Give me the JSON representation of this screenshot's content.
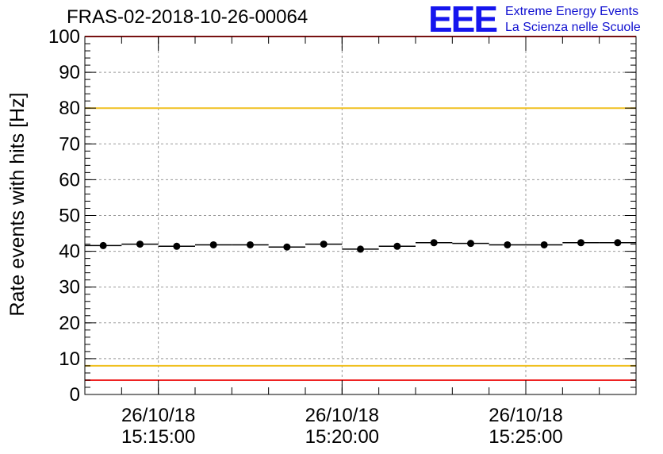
{
  "title": "FRAS-02-2018-10-26-00064",
  "logo": {
    "mark": "EEE",
    "line1": "Extreme Energy Events",
    "line2": "La Scienza nelle Scuole",
    "color": "#1515ee"
  },
  "chart_data": {
    "type": "scatter",
    "title": "FRAS-02-2018-10-26-00064",
    "xlabel": "",
    "ylabel": "Rate events with hits [Hz]",
    "ylim": [
      0,
      100
    ],
    "yticks": [
      0,
      10,
      20,
      30,
      40,
      50,
      60,
      70,
      80,
      90,
      100
    ],
    "xlim": [
      "26/10/18 15:13:00",
      "26/10/18 15:28:00"
    ],
    "xticks": [
      {
        "date": "26/10/18",
        "time": "15:15:00"
      },
      {
        "date": "26/10/18",
        "time": "15:20:00"
      },
      {
        "date": "26/10/18",
        "time": "15:25:00"
      }
    ],
    "grid": true,
    "bin_width_seconds": 60,
    "series": [
      {
        "x": [
          "15:13:30",
          "15:14:30",
          "15:15:30",
          "15:16:30",
          "15:17:30",
          "15:18:30",
          "15:19:30",
          "15:20:30",
          "15:21:30",
          "15:22:30",
          "15:23:30",
          "15:24:30",
          "15:25:30",
          "15:26:30",
          "15:27:30"
        ],
        "values": [
          41.6,
          42.0,
          41.4,
          41.8,
          41.8,
          41.2,
          42.0,
          40.6,
          41.4,
          42.4,
          42.2,
          41.8,
          41.8,
          42.4,
          42.4
        ],
        "color": "#000000"
      }
    ],
    "reference_lines": [
      {
        "value": 80,
        "color": "#f0c020"
      },
      {
        "value": 8,
        "color": "#f0c020"
      },
      {
        "value": 4,
        "color": "#ee2222"
      },
      {
        "value": 100,
        "color": "#ee2222"
      }
    ]
  }
}
